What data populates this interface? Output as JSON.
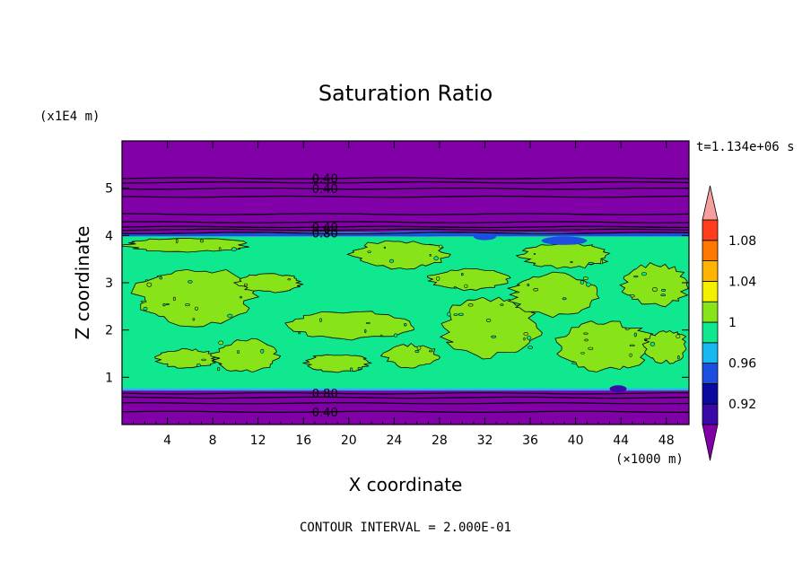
{
  "chart_data": {
    "type": "contour",
    "title": "Saturation Ratio",
    "xlabel": "X coordinate",
    "ylabel": "Z coordinate",
    "x_unit": "(×1000 m)",
    "y_unit": "(x1E4 m)",
    "time_label": "t=1.134e+06 s",
    "footer": "CONTOUR INTERVAL = 2.000E-01",
    "xlim": [
      0,
      50
    ],
    "ylim": [
      0,
      6
    ],
    "x_ticks": [
      4,
      8,
      12,
      16,
      20,
      24,
      28,
      32,
      36,
      40,
      44,
      48
    ],
    "y_ticks": [
      1,
      2,
      3,
      4,
      5
    ],
    "contour_labels": [
      {
        "text": "0.40",
        "x": 17.9,
        "z": 5.21
      },
      {
        "text": "0.40",
        "x": 17.9,
        "z": 4.99
      },
      {
        "text": "0.40",
        "x": 17.9,
        "z": 4.18
      },
      {
        "text": "0.80",
        "x": 17.9,
        "z": 4.05
      },
      {
        "text": "0.80",
        "x": 17.9,
        "z": 0.66
      },
      {
        "text": "0.40",
        "x": 17.9,
        "z": 0.27
      }
    ],
    "colorbar": {
      "levels": [
        0.9,
        0.92,
        0.94,
        0.96,
        0.98,
        1.0,
        1.02,
        1.04,
        1.06,
        1.08,
        1.1
      ],
      "colors": [
        "#3a0aa8",
        "#0a0aa0",
        "#1c4fe0",
        "#18b8f0",
        "#10e890",
        "#88e418",
        "#f4f000",
        "#ffb400",
        "#ff7800",
        "#ff3c1c"
      ],
      "under_color": "#8200a8",
      "over_color": "#f4a0a0",
      "tick_labels": [
        "0.92",
        "0.96",
        "1",
        "1.04",
        "1.08"
      ],
      "tick_values": [
        0.92,
        0.96,
        1.0,
        1.04,
        1.08
      ]
    },
    "bands": [
      {
        "z0": 0.0,
        "z1": 0.72,
        "value": 0.5,
        "color": "#8200a8"
      },
      {
        "z0": 0.72,
        "z1": 0.77,
        "value": 0.96,
        "color": "#18b8f0"
      },
      {
        "z0": 0.77,
        "z1": 3.98,
        "value": 1.0,
        "color": "#10e890"
      },
      {
        "z0": 3.98,
        "z1": 4.05,
        "value": 0.94,
        "color": "#1c4fe0"
      },
      {
        "z0": 4.05,
        "z1": 6.0,
        "value": 0.3,
        "color": "#8200a8"
      }
    ],
    "contour_levels_z": [
      0.27,
      0.45,
      0.57,
      0.66,
      4.05,
      4.12,
      4.18,
      4.28,
      4.45,
      4.82,
      4.99,
      5.12,
      5.21
    ],
    "supersaturated_regions": [
      {
        "x0": 0.0,
        "x1": 11.5,
        "z0": 3.65,
        "z1": 3.95
      },
      {
        "x0": 1.0,
        "x1": 12.0,
        "z0": 2.1,
        "z1": 3.3
      },
      {
        "x0": 3.0,
        "x1": 8.5,
        "z0": 1.2,
        "z1": 1.6
      },
      {
        "x0": 8.0,
        "x1": 14.0,
        "z0": 1.1,
        "z1": 1.8
      },
      {
        "x0": 10.0,
        "x1": 16.0,
        "z0": 2.8,
        "z1": 3.2
      },
      {
        "x0": 14.5,
        "x1": 26.0,
        "z0": 1.8,
        "z1": 2.4
      },
      {
        "x0": 16.0,
        "x1": 22.0,
        "z0": 1.1,
        "z1": 1.5
      },
      {
        "x0": 20.0,
        "x1": 29.0,
        "z0": 3.3,
        "z1": 3.9
      },
      {
        "x0": 23.0,
        "x1": 28.0,
        "z0": 1.2,
        "z1": 1.7
      },
      {
        "x0": 28.0,
        "x1": 37.0,
        "z0": 1.4,
        "z1": 2.7
      },
      {
        "x0": 27.0,
        "x1": 34.5,
        "z0": 2.85,
        "z1": 3.3
      },
      {
        "x0": 34.0,
        "x1": 42.0,
        "z0": 2.3,
        "z1": 3.2
      },
      {
        "x0": 35.0,
        "x1": 43.0,
        "z0": 3.3,
        "z1": 3.85
      },
      {
        "x0": 38.0,
        "x1": 47.0,
        "z0": 1.1,
        "z1": 2.2
      },
      {
        "x0": 44.0,
        "x1": 50.0,
        "z0": 2.5,
        "z1": 3.4
      },
      {
        "x0": 46.0,
        "x1": 50.0,
        "z0": 1.3,
        "z1": 2.0
      }
    ],
    "subsaturated_patches": [
      {
        "x0": 22.5,
        "x1": 30.0,
        "z0": 3.98,
        "z1": 4.1,
        "color": "#1c4fe0"
      },
      {
        "x0": 37.0,
        "x1": 41.0,
        "z0": 3.8,
        "z1": 3.98,
        "color": "#1c4fe0"
      },
      {
        "x0": 31.0,
        "x1": 33.0,
        "z0": 3.9,
        "z1": 4.05,
        "color": "#1c4fe0"
      },
      {
        "x0": 5.0,
        "x1": 40.0,
        "z0": 4.04,
        "z1": 4.07,
        "color": "#18b8f0"
      },
      {
        "x0": 43.0,
        "x1": 44.5,
        "z0": 0.68,
        "z1": 0.83,
        "color": "#3a0aa8"
      }
    ]
  }
}
